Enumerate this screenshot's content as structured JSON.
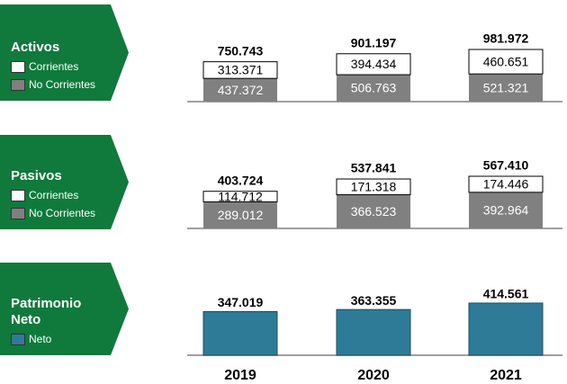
{
  "chart_data": [
    {
      "type": "bar",
      "title": "Activos",
      "series": [
        {
          "name": "Corrientes",
          "color": "#ffffff",
          "values": [
            313371,
            394434,
            460651
          ],
          "value_labels": [
            "313.371",
            "394.434",
            "460.651"
          ]
        },
        {
          "name": "No Corrientes",
          "color": "#808080",
          "values": [
            437372,
            506763,
            521321
          ],
          "value_labels": [
            "437.372",
            "506.763",
            "521.321"
          ]
        }
      ],
      "total_labels": [
        "750.743",
        "901.197",
        "981.972"
      ]
    },
    {
      "type": "bar",
      "title": "Pasivos",
      "series": [
        {
          "name": "Corrientes",
          "color": "#ffffff",
          "values": [
            114712,
            171318,
            174446
          ],
          "value_labels": [
            "114.712",
            "171.318",
            "174.446"
          ]
        },
        {
          "name": "No Corrientes",
          "color": "#808080",
          "values": [
            289012,
            366523,
            392964
          ],
          "value_labels": [
            "289.012",
            "366.523",
            "392.964"
          ]
        }
      ],
      "total_labels": [
        "403.724",
        "537.841",
        "567.410"
      ]
    },
    {
      "type": "bar",
      "title": "Patrimonio Neto",
      "series": [
        {
          "name": "Neto",
          "color": "#2e7b97",
          "values": [
            347019,
            363355,
            414561
          ],
          "value_labels": [
            "347.019",
            "363.355",
            "414.561"
          ]
        }
      ],
      "categories": [
        "2019",
        "2020",
        "2021"
      ]
    }
  ]
}
